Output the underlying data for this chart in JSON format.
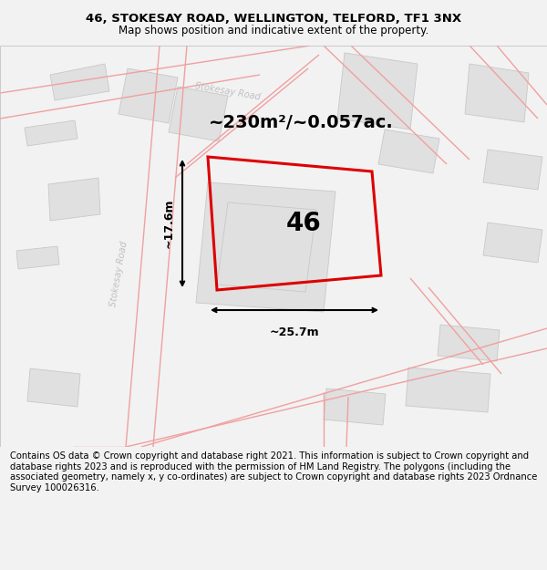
{
  "title_line1": "46, STOKESAY ROAD, WELLINGTON, TELFORD, TF1 3NX",
  "title_line2": "Map shows position and indicative extent of the property.",
  "footer_text": "Contains OS data © Crown copyright and database right 2021. This information is subject to Crown copyright and database rights 2023 and is reproduced with the permission of HM Land Registry. The polygons (including the associated geometry, namely x, y co-ordinates) are subject to Crown copyright and database rights 2023 Ordnance Survey 100026316.",
  "area_label": "~230m²/~0.057ac.",
  "width_label": "~25.7m",
  "height_label": "~17.6m",
  "plot_number": "46",
  "map_bg": "#ffffff",
  "building_fill": "#e0e0e0",
  "building_edge": "#c8c8c8",
  "road_fill": "#f5f5f5",
  "road_pink": "#f0a0a0",
  "red_poly": "#dd0000",
  "road_label_color": "#c0c0c0",
  "title_fontsize": 9.5,
  "subtitle_fontsize": 8.5,
  "footer_fontsize": 7.2,
  "area_fontsize": 14,
  "number_fontsize": 20,
  "dim_fontsize": 9
}
